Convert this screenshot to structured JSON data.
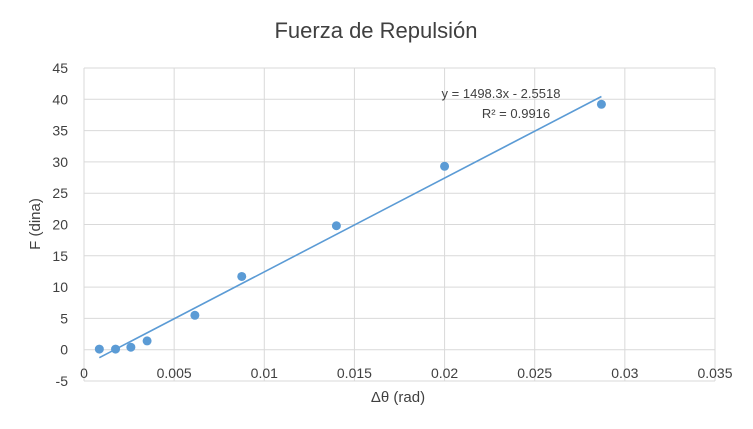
{
  "chart_data": {
    "type": "scatter",
    "title": "Fuerza de Repulsión",
    "xlabel": "Δθ (rad)",
    "ylabel": "F (dina)",
    "xlim": [
      0,
      0.035
    ],
    "ylim": [
      -5,
      45
    ],
    "x_ticks": [
      0,
      0.005,
      0.01,
      0.015,
      0.02,
      0.025,
      0.03,
      0.035
    ],
    "x_tick_labels": [
      "0",
      "0.005",
      "0.01",
      "0.015",
      "0.02",
      "0.025",
      "0.03",
      "0.035"
    ],
    "y_ticks": [
      -5,
      0,
      5,
      10,
      15,
      20,
      25,
      30,
      35,
      40,
      45
    ],
    "y_tick_labels": [
      "-5",
      "0",
      "5",
      "10",
      "15",
      "20",
      "25",
      "30",
      "35",
      "40",
      "45"
    ],
    "grid": true,
    "series": [
      {
        "color": "#5b9bd5",
        "x": [
          0.00085,
          0.00175,
          0.0026,
          0.0035,
          0.00615,
          0.00875,
          0.014,
          0.02,
          0.0287
        ],
        "y": [
          0.1,
          0.1,
          0.4,
          1.4,
          5.5,
          11.7,
          19.8,
          29.3,
          39.2
        ]
      }
    ],
    "trendline": {
      "slope": 1498.3,
      "intercept": -2.5518,
      "x_range": [
        0.00085,
        0.0287
      ],
      "color": "#5b9bd5",
      "equation": "y = 1498.3x - 2.5518",
      "r2_label": "R² = 0.9916"
    }
  }
}
